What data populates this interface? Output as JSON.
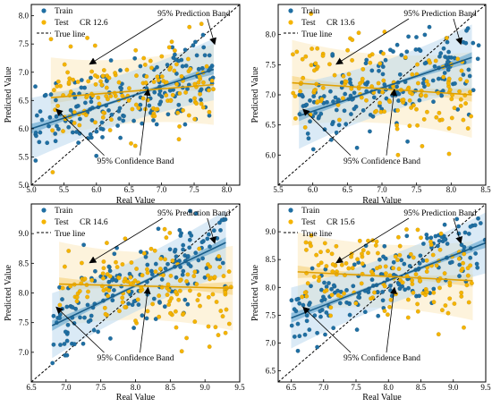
{
  "colors": {
    "train": "#1f6fa3",
    "train_band_conf": "#5fa3cf",
    "train_band_pred": "#bcd9ee",
    "test": "#f5b400",
    "test_band_conf": "#f6d27a",
    "test_band_pred": "#fbeac0",
    "true_line": "#000000"
  },
  "chart_data": [
    {
      "type": "scatter",
      "legend": [
        "Train",
        "Test",
        "True line"
      ],
      "cr_label": "CR 12.6",
      "xlabel": "Real Value",
      "ylabel": "Predicted Value",
      "xlim": [
        5.0,
        8.2
      ],
      "ylim": [
        5.0,
        8.2
      ],
      "xticks": [
        "5.0",
        "5.5",
        "6.0",
        "6.5",
        "7.0",
        "7.5",
        "8.0"
      ],
      "yticks": [
        "5.0",
        "5.5",
        "6.0",
        "6.5",
        "7.0",
        "7.5",
        "8.0"
      ],
      "annotations": {
        "prediction_band": "95% Prediction Band",
        "confidence_band": "95% Confidence Band"
      },
      "train_fit": {
        "x": [
          5.0,
          7.8
        ],
        "y": [
          6.0,
          7.05
        ]
      },
      "test_fit": {
        "x": [
          5.3,
          7.8
        ],
        "y": [
          6.55,
          6.78
        ]
      },
      "train_x_range": [
        5.05,
        7.8
      ],
      "train_y_center": [
        6.0,
        7.05
      ],
      "train_y_spread": 0.35,
      "test_x_range": [
        5.3,
        7.8
      ],
      "test_y_center": [
        6.55,
        6.78
      ],
      "test_y_spread": 0.38
    },
    {
      "type": "scatter",
      "legend": [
        "Train",
        "Test",
        "True line"
      ],
      "cr_label": "CR 13.6",
      "xlabel": "Real Value",
      "ylabel": "Predicted Value",
      "xlim": [
        5.5,
        8.5
      ],
      "ylim": [
        5.5,
        8.5
      ],
      "xticks": [
        "5.5",
        "6.0",
        "6.5",
        "7.0",
        "7.5",
        "8.0",
        "8.5"
      ],
      "yticks": [
        "6.0",
        "6.5",
        "7.0",
        "7.5",
        "8.0"
      ],
      "annotations": {
        "prediction_band": "95% Prediction Band",
        "confidence_band": "95% Confidence Band"
      },
      "train_fit": {
        "x": [
          5.8,
          8.3
        ],
        "y": [
          6.65,
          7.62
        ]
      },
      "test_fit": {
        "x": [
          5.7,
          8.3
        ],
        "y": [
          7.2,
          7.0
        ]
      },
      "train_x_range": [
        5.8,
        8.4
      ],
      "train_y_center": [
        6.65,
        7.62
      ],
      "train_y_spread": 0.35,
      "test_x_range": [
        5.7,
        8.3
      ],
      "test_y_center": [
        7.2,
        7.0
      ],
      "test_y_spread": 0.38
    },
    {
      "type": "scatter",
      "legend": [
        "Train",
        "Test",
        "True line"
      ],
      "cr_label": "CR 14.6",
      "xlabel": "Real Value",
      "ylabel": "Predicted Value",
      "xlim": [
        6.5,
        9.5
      ],
      "ylim": [
        6.5,
        9.5
      ],
      "xticks": [
        "6.5",
        "7.0",
        "7.5",
        "8.0",
        "8.5",
        "9.0",
        "9.5"
      ],
      "yticks": [
        "7.0",
        "7.5",
        "8.0",
        "8.5",
        "9.0"
      ],
      "annotations": {
        "prediction_band": "95% Prediction Band",
        "confidence_band": "95% Confidence Band"
      },
      "train_fit": {
        "x": [
          6.8,
          9.3
        ],
        "y": [
          7.45,
          8.85
        ]
      },
      "test_fit": {
        "x": [
          6.9,
          9.4
        ],
        "y": [
          8.15,
          8.08
        ]
      },
      "train_x_range": [
        6.8,
        9.3
      ],
      "train_y_center": [
        7.45,
        8.85
      ],
      "train_y_spread": 0.35,
      "test_x_range": [
        6.9,
        9.4
      ],
      "test_y_center": [
        8.15,
        8.08
      ],
      "test_y_spread": 0.38
    },
    {
      "type": "scatter",
      "legend": [
        "Train",
        "Test",
        "True line"
      ],
      "cr_label": "CR 15.6",
      "xlabel": "Real Value",
      "ylabel": "Predicted Value",
      "xlim": [
        6.3,
        9.5
      ],
      "ylim": [
        6.3,
        9.5
      ],
      "xticks": [
        "6.5",
        "7.0",
        "7.5",
        "8.0",
        "8.5",
        "9.0",
        "9.5"
      ],
      "yticks": [
        "6.5",
        "7.0",
        "7.5",
        "8.0",
        "8.5",
        "9.0"
      ],
      "annotations": {
        "prediction_band": "95% Prediction Band",
        "confidence_band": "95% Confidence Band"
      },
      "train_fit": {
        "x": [
          6.5,
          9.5
        ],
        "y": [
          7.45,
          8.8
        ]
      },
      "test_fit": {
        "x": [
          6.6,
          9.3
        ],
        "y": [
          8.28,
          8.12
        ]
      },
      "train_x_range": [
        6.5,
        9.5
      ],
      "train_y_center": [
        7.45,
        8.8
      ],
      "train_y_spread": 0.35,
      "test_x_range": [
        6.6,
        9.3
      ],
      "test_y_center": [
        8.28,
        8.12
      ],
      "test_y_spread": 0.38
    }
  ]
}
